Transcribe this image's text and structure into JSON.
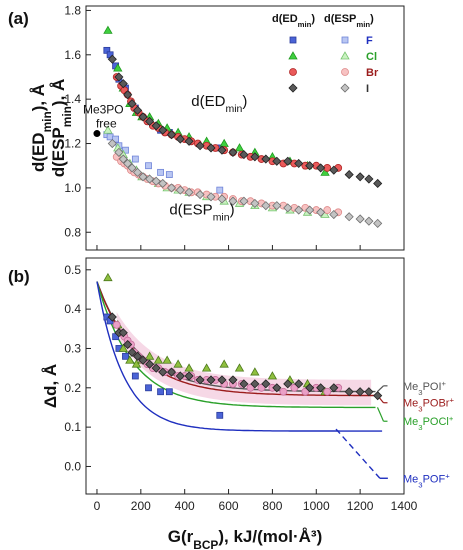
{
  "chart_data": [
    {
      "type": "scatter",
      "panel_label": "(a)",
      "ylabel": "d(ED_min), Å  d(ESP_min), Å",
      "xlim": [
        -50,
        1400
      ],
      "ylim": [
        0.72,
        1.82
      ],
      "yticks": [
        0.8,
        1.0,
        1.2,
        1.4,
        1.6,
        1.8
      ],
      "legend": {
        "position": "top-right",
        "header": [
          "d(ED_min)",
          "d(ESP_min)"
        ],
        "entries": [
          {
            "label": "F",
            "color": "#1f2fbf"
          },
          {
            "label": "Cl",
            "color": "#2aa02a"
          },
          {
            "label": "Br",
            "color": "#9b1c1c"
          },
          {
            "label": "I",
            "color": "#333333"
          }
        ]
      },
      "annotations": [
        {
          "text": "d(ED_min)",
          "x": 430,
          "y": 1.37
        },
        {
          "text": "d(ESP_min)",
          "x": 330,
          "y": 0.88
        },
        {
          "text": "Me3PO free",
          "x": 0,
          "y": 1.245
        }
      ],
      "free_point": {
        "x": 0,
        "y": 1.245
      },
      "series": [
        {
          "name": "F",
          "metric": "ED_min",
          "marker": "square",
          "fill": "#4a63d6",
          "stroke": "#2b3c9c",
          "x": [
            45,
            60,
            85,
            100,
            130,
            175,
            235,
            290,
            330,
            560
          ],
          "y": [
            1.62,
            1.6,
            1.55,
            1.49,
            1.45,
            1.36,
            1.3,
            1.26,
            1.25,
            1.18
          ]
        },
        {
          "name": "F",
          "metric": "ESP_min",
          "marker": "square",
          "fill": "#b9c6f2",
          "stroke": "#6f84d8",
          "x": [
            45,
            60,
            85,
            100,
            130,
            175,
            235,
            290,
            330,
            560
          ],
          "y": [
            1.24,
            1.23,
            1.22,
            1.19,
            1.17,
            1.13,
            1.1,
            1.07,
            1.06,
            0.99
          ]
        },
        {
          "name": "Cl",
          "metric": "ED_min",
          "marker": "triangle",
          "fill": "#3fcf3f",
          "stroke": "#1f9a1f",
          "x": [
            50,
            95,
            120,
            150,
            180,
            205,
            240,
            280,
            320,
            370,
            420,
            500,
            580,
            650,
            720,
            800,
            880,
            960,
            1040
          ],
          "y": [
            1.71,
            1.54,
            1.45,
            1.38,
            1.34,
            1.32,
            1.32,
            1.29,
            1.27,
            1.25,
            1.23,
            1.21,
            1.2,
            1.18,
            1.16,
            1.14,
            1.12,
            1.1,
            1.07
          ]
        },
        {
          "name": "Cl",
          "metric": "ESP_min",
          "marker": "triangle",
          "fill": "#c9f2c0",
          "stroke": "#78c470",
          "x": [
            50,
            95,
            120,
            150,
            180,
            205,
            240,
            280,
            320,
            370,
            420,
            500,
            580,
            650,
            720,
            800,
            880,
            960,
            1040
          ],
          "y": [
            1.26,
            1.18,
            1.15,
            1.11,
            1.08,
            1.05,
            1.04,
            1.02,
            1.0,
            0.99,
            0.98,
            0.96,
            0.94,
            0.93,
            0.92,
            0.91,
            0.9,
            0.89,
            0.88
          ]
        },
        {
          "name": "Br",
          "metric": "ED_min",
          "marker": "circle",
          "fill": "#ea5a5a",
          "stroke": "#b02626",
          "x": [
            90,
            110,
            125,
            140,
            155,
            170,
            190,
            210,
            230,
            255,
            280,
            310,
            340,
            370,
            400,
            430,
            460,
            500,
            540,
            580,
            620,
            660,
            700,
            750,
            800,
            850,
            900,
            950,
            1000,
            1050,
            1100
          ],
          "y": [
            1.5,
            1.46,
            1.44,
            1.42,
            1.39,
            1.36,
            1.34,
            1.32,
            1.3,
            1.28,
            1.27,
            1.25,
            1.24,
            1.23,
            1.22,
            1.21,
            1.2,
            1.19,
            1.18,
            1.17,
            1.16,
            1.15,
            1.14,
            1.13,
            1.12,
            1.11,
            1.11,
            1.1,
            1.1,
            1.09,
            1.09
          ]
        },
        {
          "name": "Br",
          "metric": "ESP_min",
          "marker": "circle",
          "fill": "#f7c2c2",
          "stroke": "#de8a8a",
          "x": [
            90,
            110,
            125,
            140,
            155,
            170,
            190,
            210,
            230,
            255,
            280,
            310,
            340,
            370,
            400,
            430,
            460,
            500,
            540,
            580,
            620,
            660,
            700,
            750,
            800,
            850,
            900,
            950,
            1000,
            1050,
            1100
          ],
          "y": [
            1.14,
            1.12,
            1.11,
            1.1,
            1.08,
            1.07,
            1.06,
            1.05,
            1.04,
            1.03,
            1.02,
            1.01,
            1.0,
            1.0,
            0.99,
            0.98,
            0.98,
            0.97,
            0.96,
            0.96,
            0.95,
            0.94,
            0.94,
            0.93,
            0.92,
            0.92,
            0.91,
            0.91,
            0.9,
            0.9,
            0.89
          ]
        },
        {
          "name": "I",
          "metric": "ED_min",
          "marker": "diamond",
          "fill": "#595959",
          "stroke": "#222222",
          "x": [
            70,
            100,
            120,
            140,
            160,
            185,
            210,
            240,
            270,
            300,
            340,
            380,
            420,
            470,
            520,
            570,
            620,
            670,
            720,
            770,
            820,
            870,
            920,
            970,
            1020,
            1080,
            1150,
            1200,
            1240,
            1280
          ],
          "y": [
            1.58,
            1.5,
            1.47,
            1.42,
            1.38,
            1.35,
            1.32,
            1.3,
            1.28,
            1.26,
            1.24,
            1.22,
            1.21,
            1.19,
            1.18,
            1.17,
            1.16,
            1.15,
            1.14,
            1.13,
            1.12,
            1.12,
            1.11,
            1.1,
            1.09,
            1.08,
            1.06,
            1.05,
            1.04,
            1.02
          ]
        },
        {
          "name": "I",
          "metric": "ESP_min",
          "marker": "diamond",
          "fill": "#c3c3c3",
          "stroke": "#6f6f6f",
          "x": [
            70,
            100,
            120,
            140,
            160,
            185,
            210,
            240,
            270,
            300,
            340,
            380,
            420,
            470,
            520,
            570,
            620,
            670,
            720,
            770,
            820,
            870,
            920,
            970,
            1020,
            1080,
            1150,
            1200,
            1240,
            1280
          ],
          "y": [
            1.2,
            1.16,
            1.13,
            1.11,
            1.09,
            1.07,
            1.05,
            1.04,
            1.03,
            1.02,
            1.0,
            0.99,
            0.98,
            0.97,
            0.96,
            0.95,
            0.94,
            0.94,
            0.93,
            0.92,
            0.92,
            0.91,
            0.9,
            0.9,
            0.89,
            0.88,
            0.87,
            0.86,
            0.85,
            0.84
          ]
        }
      ]
    },
    {
      "type": "scatter",
      "panel_label": "(b)",
      "xlabel": "G(r_BCP), kJ/(mol·Å³)",
      "ylabel": "Δd, Å",
      "xlim": [
        -50,
        1400
      ],
      "ylim": [
        -0.07,
        0.53
      ],
      "xticks": [
        0,
        200,
        400,
        600,
        800,
        1000,
        1200,
        1400
      ],
      "yticks": [
        0.0,
        0.1,
        0.2,
        0.3,
        0.4,
        0.5
      ],
      "series": [
        {
          "name": "F",
          "marker": "square",
          "fill": "#4a63d6",
          "stroke": "#2b3c9c",
          "x": [
            45,
            60,
            85,
            100,
            130,
            175,
            235,
            290,
            330,
            560
          ],
          "y": [
            0.38,
            0.37,
            0.33,
            0.3,
            0.28,
            0.23,
            0.2,
            0.19,
            0.19,
            0.13
          ]
        },
        {
          "name": "Cl",
          "marker": "triangle",
          "fill": "#8fbf3f",
          "stroke": "#4d7a1c",
          "x": [
            50,
            95,
            120,
            150,
            180,
            205,
            240,
            280,
            320,
            370,
            420,
            500,
            580,
            650,
            720,
            800,
            880,
            960,
            1040
          ],
          "y": [
            0.48,
            0.36,
            0.3,
            0.27,
            0.26,
            0.27,
            0.28,
            0.27,
            0.27,
            0.26,
            0.25,
            0.25,
            0.26,
            0.25,
            0.24,
            0.23,
            0.22,
            0.21,
            0.19
          ]
        },
        {
          "name": "Br",
          "marker": "circle",
          "fill": "#eaa0c6",
          "stroke": "#c46d9a",
          "x": [
            90,
            110,
            125,
            140,
            155,
            170,
            190,
            210,
            230,
            255,
            280,
            310,
            340,
            370,
            400,
            430,
            460,
            500,
            540,
            580,
            620,
            660,
            700,
            750,
            800,
            850,
            900,
            950,
            1000,
            1050,
            1100
          ],
          "y": [
            0.36,
            0.34,
            0.33,
            0.32,
            0.31,
            0.29,
            0.28,
            0.27,
            0.26,
            0.25,
            0.25,
            0.24,
            0.24,
            0.23,
            0.23,
            0.23,
            0.22,
            0.22,
            0.22,
            0.21,
            0.21,
            0.21,
            0.2,
            0.2,
            0.2,
            0.19,
            0.2,
            0.19,
            0.2,
            0.19,
            0.2
          ]
        },
        {
          "name": "I",
          "marker": "diamond",
          "fill": "#595959",
          "stroke": "#222222",
          "x": [
            70,
            100,
            120,
            140,
            160,
            185,
            210,
            240,
            270,
            300,
            340,
            380,
            420,
            470,
            520,
            570,
            620,
            670,
            720,
            770,
            820,
            870,
            920,
            970,
            1020,
            1080,
            1150,
            1200,
            1240,
            1280
          ],
          "y": [
            0.38,
            0.34,
            0.34,
            0.31,
            0.29,
            0.28,
            0.27,
            0.26,
            0.25,
            0.24,
            0.24,
            0.23,
            0.23,
            0.22,
            0.22,
            0.22,
            0.22,
            0.21,
            0.21,
            0.21,
            0.2,
            0.21,
            0.21,
            0.2,
            0.2,
            0.2,
            0.19,
            0.19,
            0.19,
            0.18
          ]
        }
      ],
      "fits": [
        {
          "name": "Me3POI+",
          "color": "#555555",
          "a": 0.28,
          "k": 0.0054,
          "c": 0.19,
          "end_x": 1270,
          "label_y": 0.205
        },
        {
          "name": "Me3POBr+",
          "color": "#9b1c1c",
          "a": 0.29,
          "k": 0.0054,
          "c": 0.18,
          "end_x": 1270,
          "label_y": 0.162
        },
        {
          "name": "Me3POCl+",
          "color": "#2aa02a",
          "a": 0.32,
          "k": 0.0062,
          "c": 0.15,
          "end_x": 1270,
          "label_y": 0.115
        },
        {
          "name": "Me3POF+",
          "color": "#1f2fbf",
          "a": 0.38,
          "k": 0.0082,
          "c": 0.09,
          "end_x": 1300,
          "label_y": -0.03,
          "dashed_from": [
            1090,
            0.095
          ],
          "dashed_to": [
            1290,
            -0.03
          ]
        }
      ],
      "highlight_color": "#f2c7dc"
    }
  ]
}
